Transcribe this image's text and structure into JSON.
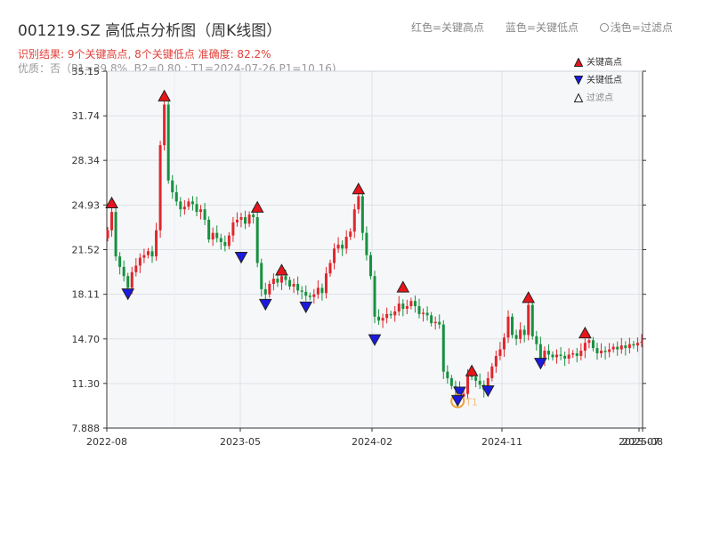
{
  "title": "001219.SZ 高低点分析图（周K线图）",
  "subtitle": "识别结果: 9个关键高点, 8个关键低点  准确度: 82.2%",
  "note": "优质：否（P1=39.8%, B2=0.80 ; T1=2024-07-26 P1=10.16)",
  "top_legend": {
    "red": "红色=关键高点",
    "blue": "蓝色=关键低点",
    "light": "浅色=过滤点"
  },
  "legend": {
    "high": "关键高点",
    "low": "关键低点",
    "filtered": "过滤点"
  },
  "colors": {
    "up": "#e0262d",
    "down": "#16913f",
    "high_marker": "#e8151b",
    "low_marker": "#1b1be0",
    "special_ring": "#f0a030",
    "plot_bg": "#f6f7f9",
    "grid": "#dde1e6",
    "axis": "#333333"
  },
  "chart_data": {
    "type": "candlestick",
    "period": "weekly",
    "x_tick_labels": [
      "2022-08",
      "2023-05",
      "2024-02",
      "2024-11",
      "2025-07",
      "2025-08"
    ],
    "y_tick_labels": [
      "7.888",
      "11.30",
      "14.70",
      "18.11",
      "21.52",
      "24.93",
      "28.34",
      "31.74",
      "35.15"
    ],
    "ylim": [
      7.888,
      35.15
    ],
    "grid": true,
    "special_label": "T1",
    "key_highs": [
      24.93,
      33.1,
      24.6,
      19.8,
      26.0,
      18.5,
      12.1,
      17.7,
      15.0
    ],
    "key_lows": [
      18.3,
      21.1,
      17.5,
      17.3,
      14.8,
      10.8,
      10.9,
      13.0
    ],
    "special_low": 10.16
  }
}
